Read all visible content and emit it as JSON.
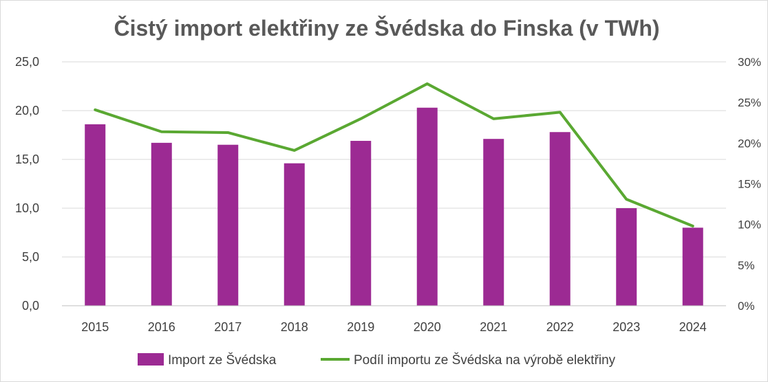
{
  "chart_data": {
    "type": "bar",
    "title": "Čistý import elektřiny ze Švédska do Finska (v TWh)",
    "categories": [
      "2015",
      "2016",
      "2017",
      "2018",
      "2019",
      "2020",
      "2021",
      "2022",
      "2023",
      "2024"
    ],
    "series": [
      {
        "name": "Import ze Švédska",
        "type": "bar",
        "axis": "left",
        "color": "#9c2a93",
        "values": [
          18.6,
          16.7,
          16.5,
          14.6,
          16.9,
          20.3,
          17.1,
          17.8,
          10.0,
          8.0
        ]
      },
      {
        "name": "Podíl importu ze Švédska na výrobě elektřiny",
        "type": "line",
        "axis": "right",
        "color": "#5aa832",
        "values": [
          24.1,
          21.4,
          21.3,
          19.1,
          23.0,
          27.3,
          23.0,
          23.8,
          13.1,
          9.8
        ]
      }
    ],
    "y_left": {
      "ylim": [
        0,
        25
      ],
      "ticks": [
        "0,0",
        "5,0",
        "10,0",
        "15,0",
        "20,0",
        "25,0"
      ]
    },
    "y_right": {
      "ylim": [
        0,
        30
      ],
      "ticks": [
        "0%",
        "5%",
        "10%",
        "15%",
        "20%",
        "25%",
        "30%"
      ]
    },
    "grid": true,
    "legend": "bottom"
  }
}
